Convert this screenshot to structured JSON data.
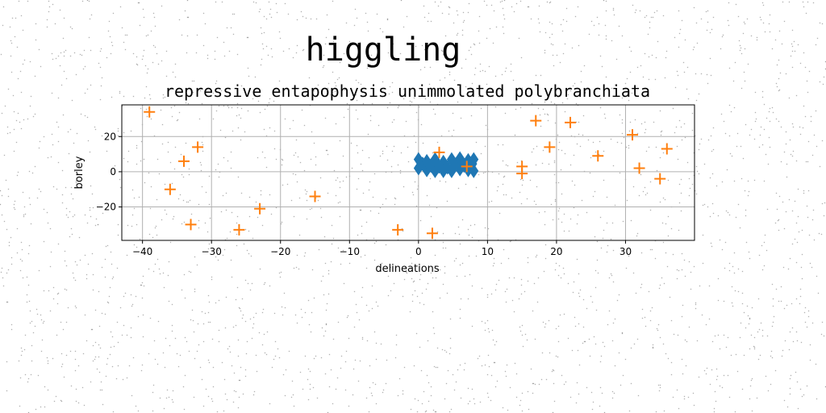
{
  "chart_data": {
    "type": "scatter",
    "suptitle": "higgling",
    "title": "repressive entapophysis unimmolated polybranchiata",
    "xlabel": "delineations",
    "ylabel": "borley",
    "xlim": [
      -43,
      40
    ],
    "ylim": [
      -39,
      38
    ],
    "xticks": [
      -40,
      -30,
      -20,
      -10,
      0,
      10,
      20,
      30
    ],
    "yticks": [
      -20,
      0,
      20
    ],
    "grid": true,
    "series": [
      {
        "marker": "diamond",
        "color": "#1f77b4",
        "points": [
          [
            0,
            2
          ],
          [
            0,
            7
          ],
          [
            0.6,
            4.5
          ],
          [
            1.2,
            1
          ],
          [
            1.2,
            6
          ],
          [
            1.8,
            3.5
          ],
          [
            2.4,
            0.5
          ],
          [
            2.4,
            7
          ],
          [
            3,
            3
          ],
          [
            3.6,
            5.5
          ],
          [
            3.6,
            0.5
          ],
          [
            4.2,
            2.5
          ],
          [
            4.8,
            7
          ],
          [
            4.8,
            0.5
          ],
          [
            5.4,
            4
          ],
          [
            6,
            1.5
          ],
          [
            6,
            7.5
          ],
          [
            6.6,
            3.5
          ],
          [
            7.2,
            6.5
          ],
          [
            7.2,
            1
          ],
          [
            7.8,
            4.5
          ],
          [
            8,
            0.5
          ],
          [
            8,
            7
          ]
        ]
      },
      {
        "marker": "plus",
        "color": "#ff7f0e",
        "points": [
          [
            -39,
            34
          ],
          [
            -36,
            -10
          ],
          [
            -34,
            6
          ],
          [
            -33,
            -30
          ],
          [
            -32,
            14
          ],
          [
            -26,
            -33
          ],
          [
            -23,
            -21
          ],
          [
            -15,
            -14
          ],
          [
            -3,
            -33
          ],
          [
            2,
            -35
          ],
          [
            3,
            11
          ],
          [
            7,
            3
          ],
          [
            15,
            -1
          ],
          [
            15,
            3
          ],
          [
            17,
            29
          ],
          [
            19,
            14
          ],
          [
            22,
            28
          ],
          [
            26,
            9
          ],
          [
            31,
            21
          ],
          [
            32,
            2
          ],
          [
            35,
            -4
          ],
          [
            36,
            13
          ]
        ]
      }
    ]
  }
}
